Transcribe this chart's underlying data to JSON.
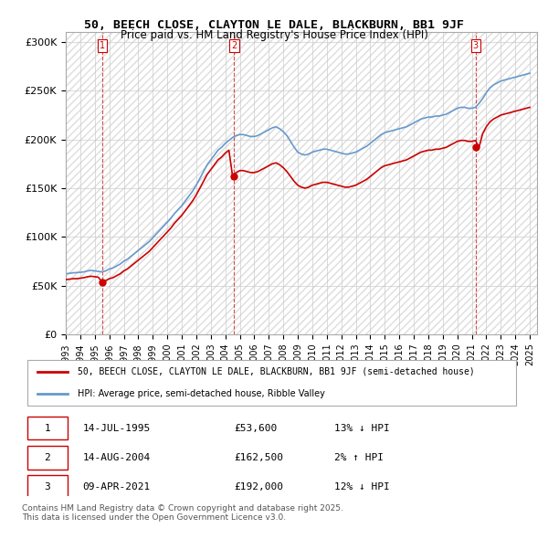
{
  "title_line1": "50, BEECH CLOSE, CLAYTON LE DALE, BLACKBURN, BB1 9JF",
  "title_line2": "Price paid vs. HM Land Registry's House Price Index (HPI)",
  "ylabel_ticks": [
    "£0",
    "£50K",
    "£100K",
    "£150K",
    "£200K",
    "£250K",
    "£300K"
  ],
  "ytick_values": [
    0,
    50000,
    100000,
    150000,
    200000,
    250000,
    300000
  ],
  "ylim": [
    0,
    310000
  ],
  "xlim_start": 1993.0,
  "xlim_end": 2025.5,
  "legend_line1": "50, BEECH CLOSE, CLAYTON LE DALE, BLACKBURN, BB1 9JF (semi-detached house)",
  "legend_line2": "HPI: Average price, semi-detached house, Ribble Valley",
  "price_color": "#cc0000",
  "hpi_color": "#6699cc",
  "sale_marker_color": "#cc0000",
  "annotation_color": "#cc0000",
  "footnote": "Contains HM Land Registry data © Crown copyright and database right 2025.\nThis data is licensed under the Open Government Licence v3.0.",
  "sales": [
    {
      "date": 1995.54,
      "price": 53600,
      "label": "1"
    },
    {
      "date": 2004.62,
      "price": 162500,
      "label": "2"
    },
    {
      "date": 2021.27,
      "price": 192000,
      "label": "3"
    }
  ],
  "table_rows": [
    {
      "num": "1",
      "date": "14-JUL-1995",
      "price": "£53,600",
      "change": "13% ↓ HPI"
    },
    {
      "num": "2",
      "date": "14-AUG-2004",
      "price": "£162,500",
      "change": "2% ↑ HPI"
    },
    {
      "num": "3",
      "date": "09-APR-2021",
      "price": "£192,000",
      "change": "12% ↓ HPI"
    }
  ],
  "hpi_x": [
    1993.0,
    1993.25,
    1993.5,
    1993.75,
    1994.0,
    1994.25,
    1994.5,
    1994.75,
    1995.0,
    1995.25,
    1995.5,
    1995.75,
    1996.0,
    1996.25,
    1996.5,
    1996.75,
    1997.0,
    1997.25,
    1997.5,
    1997.75,
    1998.0,
    1998.25,
    1998.5,
    1998.75,
    1999.0,
    1999.25,
    1999.5,
    1999.75,
    2000.0,
    2000.25,
    2000.5,
    2000.75,
    2001.0,
    2001.25,
    2001.5,
    2001.75,
    2002.0,
    2002.25,
    2002.5,
    2002.75,
    2003.0,
    2003.25,
    2003.5,
    2003.75,
    2004.0,
    2004.25,
    2004.5,
    2004.75,
    2005.0,
    2005.25,
    2005.5,
    2005.75,
    2006.0,
    2006.25,
    2006.5,
    2006.75,
    2007.0,
    2007.25,
    2007.5,
    2007.75,
    2008.0,
    2008.25,
    2008.5,
    2008.75,
    2009.0,
    2009.25,
    2009.5,
    2009.75,
    2010.0,
    2010.25,
    2010.5,
    2010.75,
    2011.0,
    2011.25,
    2011.5,
    2011.75,
    2012.0,
    2012.25,
    2012.5,
    2012.75,
    2013.0,
    2013.25,
    2013.5,
    2013.75,
    2014.0,
    2014.25,
    2014.5,
    2014.75,
    2015.0,
    2015.25,
    2015.5,
    2015.75,
    2016.0,
    2016.25,
    2016.5,
    2016.75,
    2017.0,
    2017.25,
    2017.5,
    2017.75,
    2018.0,
    2018.25,
    2018.5,
    2018.75,
    2019.0,
    2019.25,
    2019.5,
    2019.75,
    2020.0,
    2020.25,
    2020.5,
    2020.75,
    2021.0,
    2021.25,
    2021.5,
    2021.75,
    2022.0,
    2022.25,
    2022.5,
    2022.75,
    2023.0,
    2023.25,
    2023.5,
    2023.75,
    2024.0,
    2024.25,
    2024.5,
    2024.75,
    2025.0
  ],
  "hpi_y": [
    62000,
    62500,
    63000,
    63200,
    63500,
    64000,
    65000,
    65500,
    65000,
    64500,
    64000,
    65000,
    67000,
    68000,
    70000,
    72000,
    75000,
    77000,
    80000,
    83000,
    86000,
    89000,
    92000,
    95000,
    99000,
    103000,
    107000,
    111000,
    115000,
    119000,
    124000,
    128000,
    132000,
    137000,
    142000,
    147000,
    153000,
    160000,
    167000,
    174000,
    179000,
    184000,
    189000,
    192000,
    196000,
    199000,
    202000,
    204000,
    205000,
    205000,
    204000,
    203000,
    203000,
    204000,
    206000,
    208000,
    210000,
    212000,
    213000,
    211000,
    208000,
    204000,
    198000,
    192000,
    187000,
    185000,
    184000,
    185000,
    187000,
    188000,
    189000,
    190000,
    190000,
    189000,
    188000,
    187000,
    186000,
    185000,
    185000,
    186000,
    187000,
    189000,
    191000,
    193000,
    196000,
    199000,
    202000,
    205000,
    207000,
    208000,
    209000,
    210000,
    211000,
    212000,
    213000,
    215000,
    217000,
    219000,
    221000,
    222000,
    223000,
    223000,
    224000,
    224000,
    225000,
    226000,
    228000,
    230000,
    232000,
    233000,
    233000,
    232000,
    232000,
    233000,
    237000,
    242000,
    248000,
    253000,
    256000,
    258000,
    260000,
    261000,
    262000,
    263000,
    264000,
    265000,
    266000,
    267000,
    268000
  ],
  "price_x": [
    1993.0,
    1993.25,
    1993.5,
    1993.75,
    1994.0,
    1994.25,
    1994.5,
    1994.75,
    1995.0,
    1995.25,
    1995.5,
    1995.75,
    1996.0,
    1996.25,
    1996.5,
    1996.75,
    1997.0,
    1997.25,
    1997.5,
    1997.75,
    1998.0,
    1998.25,
    1998.5,
    1998.75,
    1999.0,
    1999.25,
    1999.5,
    1999.75,
    2000.0,
    2000.25,
    2000.5,
    2000.75,
    2001.0,
    2001.25,
    2001.5,
    2001.75,
    2002.0,
    2002.25,
    2002.5,
    2002.75,
    2003.0,
    2003.25,
    2003.5,
    2003.75,
    2004.0,
    2004.25,
    2004.5,
    2004.75,
    2005.0,
    2005.25,
    2005.5,
    2005.75,
    2006.0,
    2006.25,
    2006.5,
    2006.75,
    2007.0,
    2007.25,
    2007.5,
    2007.75,
    2008.0,
    2008.25,
    2008.5,
    2008.75,
    2009.0,
    2009.25,
    2009.5,
    2009.75,
    2010.0,
    2010.25,
    2010.5,
    2010.75,
    2011.0,
    2011.25,
    2011.5,
    2011.75,
    2012.0,
    2012.25,
    2012.5,
    2012.75,
    2013.0,
    2013.25,
    2013.5,
    2013.75,
    2014.0,
    2014.25,
    2014.5,
    2014.75,
    2015.0,
    2015.25,
    2015.5,
    2015.75,
    2016.0,
    2016.25,
    2016.5,
    2016.75,
    2017.0,
    2017.25,
    2017.5,
    2017.75,
    2018.0,
    2018.25,
    2018.5,
    2018.75,
    2019.0,
    2019.25,
    2019.5,
    2019.75,
    2020.0,
    2020.25,
    2020.5,
    2020.75,
    2021.0,
    2021.25,
    2021.5,
    2021.75,
    2022.0,
    2022.25,
    2022.5,
    2022.75,
    2023.0,
    2023.25,
    2023.5,
    2023.75,
    2024.0,
    2024.25,
    2024.5,
    2024.75,
    2025.0
  ],
  "price_y": [
    56000,
    56500,
    57000,
    57000,
    57500,
    58000,
    59000,
    59500,
    59000,
    58500,
    53600,
    55000,
    57000,
    58000,
    60000,
    62000,
    65000,
    67000,
    70000,
    73000,
    76000,
    79000,
    82000,
    85000,
    89000,
    93000,
    97000,
    101000,
    105000,
    109000,
    114000,
    118000,
    122000,
    127000,
    132000,
    137000,
    143000,
    150000,
    157000,
    164000,
    169000,
    174000,
    179000,
    182000,
    186000,
    189000,
    162500,
    166000,
    168000,
    168000,
    167000,
    166000,
    166000,
    167000,
    169000,
    171000,
    173000,
    175000,
    176000,
    174000,
    171000,
    167000,
    162000,
    157000,
    153000,
    151000,
    150000,
    151000,
    153000,
    154000,
    155000,
    156000,
    156000,
    155000,
    154000,
    153000,
    152000,
    151000,
    151000,
    152000,
    153000,
    155000,
    157000,
    159000,
    162000,
    165000,
    168000,
    171000,
    173000,
    174000,
    175000,
    176000,
    177000,
    178000,
    179000,
    181000,
    183000,
    185000,
    187000,
    188000,
    189000,
    189000,
    190000,
    190000,
    191000,
    192000,
    194000,
    196000,
    198000,
    199000,
    199000,
    198000,
    198000,
    199000,
    192000,
    206000,
    213000,
    218000,
    221000,
    223000,
    225000,
    226000,
    227000,
    228000,
    229000,
    230000,
    231000,
    232000,
    233000
  ]
}
